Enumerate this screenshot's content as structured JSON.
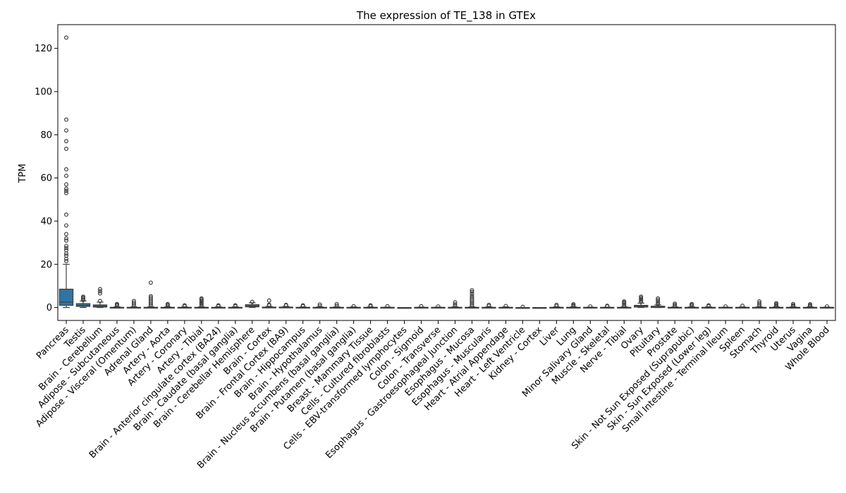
{
  "chart_data": {
    "type": "box",
    "title": "The expression of TE_138 in GTEx",
    "xlabel": "",
    "ylabel": "TPM",
    "ylim": [
      -6,
      131
    ],
    "yticks": [
      0,
      20,
      40,
      60,
      80,
      100,
      120
    ],
    "ytick_labels": [
      "0",
      "20",
      "40",
      "60",
      "80",
      "100",
      "120"
    ],
    "box_color": "#3274a1",
    "grid": false,
    "categories": [
      "Pancreas",
      "Testis",
      "Brain - Cerebellum",
      "Adipose - Subcutaneous",
      "Adipose - Visceral (Omentum)",
      "Adrenal Gland",
      "Artery - Aorta",
      "Artery - Coronary",
      "Artery - Tibial",
      "Brain - Anterior cingulate cortex (BA24)",
      "Brain - Caudate (basal ganglia)",
      "Brain - Cerebellar Hemisphere",
      "Brain - Cortex",
      "Brain - Frontal Cortex (BA9)",
      "Brain - Hippocampus",
      "Brain - Hypothalamus",
      "Brain - Nucleus accumbens (basal ganglia)",
      "Brain - Putamen (basal ganglia)",
      "Breast - Mammary Tissue",
      "Cells - Cultured fibroblasts",
      "Cells - EBV-transformed lymphocytes",
      "Colon - Sigmoid",
      "Colon - Transverse",
      "Esophagus - Gastroesophageal Junction",
      "Esophagus - Mucosa",
      "Esophagus - Muscularis",
      "Heart - Atrial Appendage",
      "Heart - Left Ventricle",
      "Kidney - Cortex",
      "Liver",
      "Lung",
      "Minor Salivary Gland",
      "Muscle - Skeletal",
      "Nerve - Tibial",
      "Ovary",
      "Pituitary",
      "Prostate",
      "Skin - Not Sun Exposed (Suprapubic)",
      "Skin - Sun Exposed (Lower leg)",
      "Small Intestine - Terminal Ileum",
      "Spleen",
      "Stomach",
      "Thyroid",
      "Uterus",
      "Vagina",
      "Whole Blood"
    ],
    "boxes": [
      {
        "min": 0,
        "q1": 1.0,
        "median": 2.5,
        "q3": 8.5,
        "max": 20,
        "outliers": [
          125,
          87,
          82,
          77,
          73.5,
          64,
          61,
          57,
          55,
          54,
          53,
          43,
          38,
          34,
          32,
          31,
          28.5,
          27.5,
          26.5,
          25,
          24,
          22.5,
          21.5
        ]
      },
      {
        "min": 0,
        "q1": 0.5,
        "median": 1.0,
        "q3": 1.8,
        "max": 3.0,
        "outliers": [
          3.5,
          4.0,
          4.5,
          5.0
        ]
      },
      {
        "min": 0,
        "q1": 0.2,
        "median": 0.6,
        "q3": 1.2,
        "max": 2.5,
        "outliers": [
          3.0,
          6.5,
          7.5,
          8.5
        ]
      },
      {
        "min": 0,
        "q1": 0,
        "median": 0,
        "q3": 0.1,
        "max": 0.3,
        "outliers": [
          0.8,
          1.2,
          1.6
        ]
      },
      {
        "min": 0,
        "q1": 0,
        "median": 0,
        "q3": 0.1,
        "max": 0.3,
        "outliers": [
          0.8,
          1.5,
          2.2,
          3.0
        ]
      },
      {
        "min": 0,
        "q1": 0,
        "median": 0,
        "q3": 0.1,
        "max": 0.3,
        "outliers": [
          0.8,
          1.5,
          2.2,
          3.0,
          3.8,
          4.5,
          5.2,
          11.5
        ]
      },
      {
        "min": 0,
        "q1": 0,
        "median": 0,
        "q3": 0.1,
        "max": 0.3,
        "outliers": [
          0.7,
          1.2,
          1.6
        ]
      },
      {
        "min": 0,
        "q1": 0,
        "median": 0,
        "q3": 0.1,
        "max": 0.3,
        "outliers": [
          0.6,
          1.0
        ]
      },
      {
        "min": 0,
        "q1": 0,
        "median": 0,
        "q3": 0.1,
        "max": 0.3,
        "outliers": [
          0.8,
          1.5,
          2.0,
          2.6,
          3.2,
          3.8,
          4.2
        ]
      },
      {
        "min": 0,
        "q1": 0,
        "median": 0,
        "q3": 0.1,
        "max": 0.3,
        "outliers": [
          0.6,
          1.0
        ]
      },
      {
        "min": 0,
        "q1": 0,
        "median": 0,
        "q3": 0.1,
        "max": 0.3,
        "outliers": [
          0.6,
          1.0
        ]
      },
      {
        "min": 0,
        "q1": 0.3,
        "median": 0.7,
        "q3": 1.3,
        "max": 2.2,
        "outliers": [
          2.6
        ]
      },
      {
        "min": 0,
        "q1": 0,
        "median": 0,
        "q3": 0.2,
        "max": 0.5,
        "outliers": [
          0.9,
          1.3,
          3.2
        ]
      },
      {
        "min": 0,
        "q1": 0,
        "median": 0,
        "q3": 0.2,
        "max": 0.5,
        "outliers": [
          0.9,
          1.2
        ]
      },
      {
        "min": 0,
        "q1": 0,
        "median": 0,
        "q3": 0.1,
        "max": 0.3,
        "outliers": [
          0.6,
          1.0
        ]
      },
      {
        "min": 0,
        "q1": 0,
        "median": 0,
        "q3": 0.1,
        "max": 0.3,
        "outliers": [
          0.7,
          1.4
        ]
      },
      {
        "min": 0,
        "q1": 0,
        "median": 0,
        "q3": 0.1,
        "max": 0.3,
        "outliers": [
          0.8,
          1.6
        ]
      },
      {
        "min": 0,
        "q1": 0,
        "median": 0,
        "q3": 0.1,
        "max": 0.3,
        "outliers": [
          0.6
        ]
      },
      {
        "min": 0,
        "q1": 0,
        "median": 0,
        "q3": 0.1,
        "max": 0.3,
        "outliers": [
          0.6,
          1.0
        ]
      },
      {
        "min": 0,
        "q1": 0,
        "median": 0,
        "q3": 0.1,
        "max": 0.2,
        "outliers": [
          0.6
        ]
      },
      {
        "min": 0,
        "q1": 0,
        "median": 0,
        "q3": 0,
        "max": 0,
        "outliers": []
      },
      {
        "min": 0,
        "q1": 0,
        "median": 0,
        "q3": 0.1,
        "max": 0.2,
        "outliers": [
          0.6
        ]
      },
      {
        "min": 0,
        "q1": 0,
        "median": 0,
        "q3": 0.1,
        "max": 0.2,
        "outliers": [
          0.5
        ]
      },
      {
        "min": 0,
        "q1": 0,
        "median": 0,
        "q3": 0.1,
        "max": 0.3,
        "outliers": [
          0.7,
          1.5,
          2.4
        ]
      },
      {
        "min": 0,
        "q1": 0,
        "median": 0,
        "q3": 0.1,
        "max": 0.3,
        "outliers": [
          0.8,
          1.5,
          2.2,
          2.9,
          3.6,
          4.4,
          5.2,
          6.2,
          7.2,
          8.0
        ]
      },
      {
        "min": 0,
        "q1": 0,
        "median": 0,
        "q3": 0.1,
        "max": 0.3,
        "outliers": [
          0.7,
          1.2
        ]
      },
      {
        "min": 0,
        "q1": 0,
        "median": 0,
        "q3": 0.1,
        "max": 0.3,
        "outliers": [
          0.7
        ]
      },
      {
        "min": 0,
        "q1": 0,
        "median": 0,
        "q3": 0,
        "max": 0,
        "outliers": [
          0.3
        ]
      },
      {
        "min": 0,
        "q1": 0,
        "median": 0,
        "q3": 0,
        "max": 0,
        "outliers": []
      },
      {
        "min": 0,
        "q1": 0,
        "median": 0,
        "q3": 0.1,
        "max": 0.3,
        "outliers": [
          0.7,
          1.2
        ]
      },
      {
        "min": 0,
        "q1": 0,
        "median": 0,
        "q3": 0.1,
        "max": 0.3,
        "outliers": [
          0.6,
          1.0,
          1.5
        ]
      },
      {
        "min": 0,
        "q1": 0,
        "median": 0,
        "q3": 0.1,
        "max": 0.2,
        "outliers": [
          0.5
        ]
      },
      {
        "min": 0,
        "q1": 0,
        "median": 0,
        "q3": 0.1,
        "max": 0.2,
        "outliers": [
          0.5,
          0.8
        ]
      },
      {
        "min": 0,
        "q1": 0,
        "median": 0,
        "q3": 0.1,
        "max": 0.3,
        "outliers": [
          0.7,
          1.2,
          1.8,
          2.3,
          2.8
        ]
      },
      {
        "min": 0,
        "q1": 0.2,
        "median": 0.6,
        "q3": 1.0,
        "max": 2.0,
        "outliers": [
          2.6,
          3.2,
          3.8,
          4.4,
          5.0
        ]
      },
      {
        "min": 0,
        "q1": 0,
        "median": 0.2,
        "q3": 0.6,
        "max": 1.2,
        "outliers": [
          1.6,
          2.2,
          2.8,
          3.5,
          4.2
        ]
      },
      {
        "min": 0,
        "q1": 0,
        "median": 0,
        "q3": 0.1,
        "max": 0.3,
        "outliers": [
          0.7,
          1.2,
          1.8
        ]
      },
      {
        "min": 0,
        "q1": 0,
        "median": 0,
        "q3": 0.1,
        "max": 0.3,
        "outliers": [
          0.7,
          1.2,
          1.6
        ]
      },
      {
        "min": 0,
        "q1": 0,
        "median": 0,
        "q3": 0.1,
        "max": 0.3,
        "outliers": [
          0.6,
          1.0
        ]
      },
      {
        "min": 0,
        "q1": 0,
        "median": 0,
        "q3": 0.1,
        "max": 0.2,
        "outliers": [
          0.5
        ]
      },
      {
        "min": 0,
        "q1": 0,
        "median": 0,
        "q3": 0.1,
        "max": 0.3,
        "outliers": [
          0.8
        ]
      },
      {
        "min": 0,
        "q1": 0,
        "median": 0,
        "q3": 0.1,
        "max": 0.3,
        "outliers": [
          0.7,
          1.3,
          2.0,
          2.8
        ]
      },
      {
        "min": 0,
        "q1": 0,
        "median": 0,
        "q3": 0.1,
        "max": 0.3,
        "outliers": [
          0.6,
          1.0,
          1.5,
          2.0
        ]
      },
      {
        "min": 0,
        "q1": 0,
        "median": 0,
        "q3": 0.1,
        "max": 0.3,
        "outliers": [
          0.6,
          1.0,
          1.6
        ]
      },
      {
        "min": 0,
        "q1": 0,
        "median": 0,
        "q3": 0.1,
        "max": 0.3,
        "outliers": [
          0.6,
          1.0,
          1.5
        ]
      },
      {
        "min": 0,
        "q1": 0,
        "median": 0,
        "q3": 0.1,
        "max": 0.2,
        "outliers": [
          0.5
        ]
      }
    ]
  }
}
